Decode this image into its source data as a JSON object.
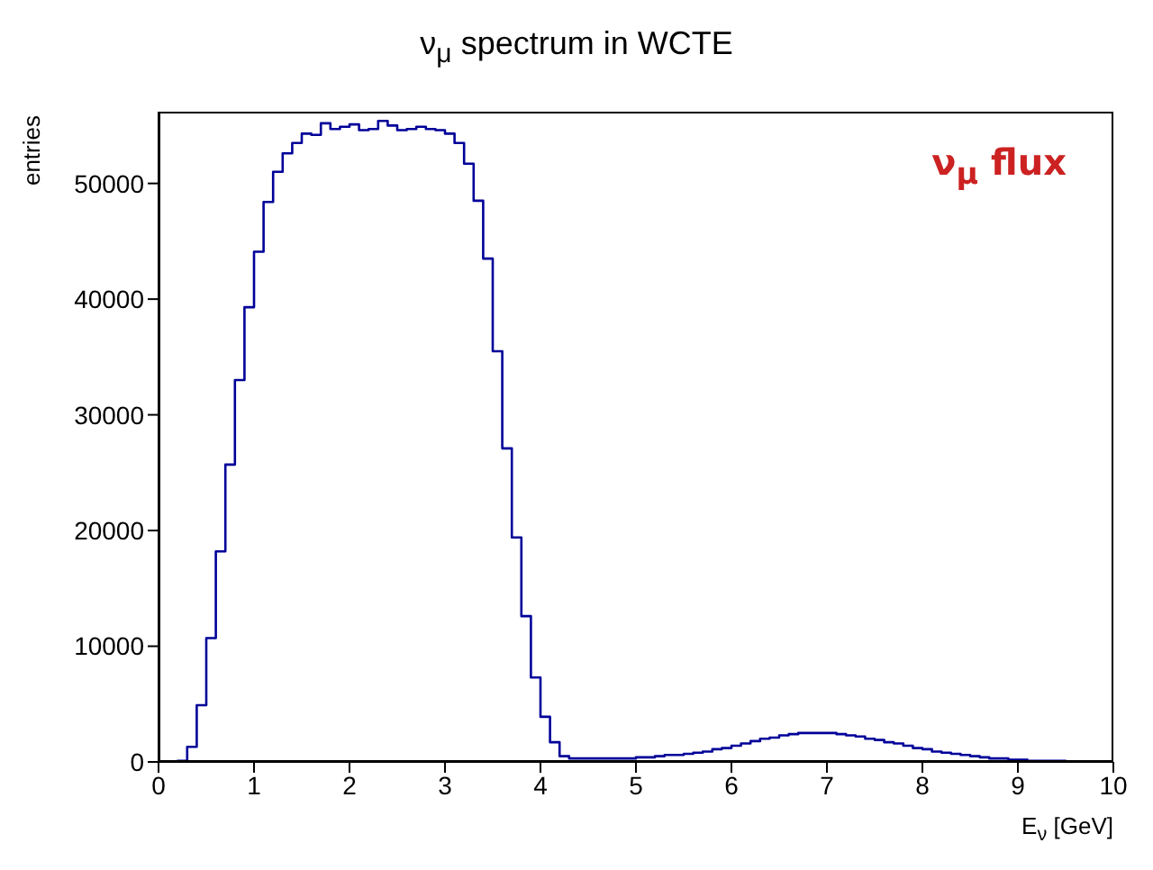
{
  "chart_data": {
    "type": "histogram",
    "title": "ν$_{μ}$ spectrum in WCTE",
    "xlabel": "E$_{ν}$ [GeV]",
    "ylabel": "entries",
    "annotations": [
      "ν$_{μ}$ flux"
    ],
    "bins": [
      0,
      0.1,
      0.2,
      0.3,
      0.4,
      0.5,
      0.6,
      0.7,
      0.8,
      0.9,
      1,
      1.1,
      1.2,
      1.3,
      1.4,
      1.5,
      1.6,
      1.7,
      1.8,
      1.9,
      2,
      2.1,
      2.2,
      2.3,
      2.4,
      2.5,
      2.6,
      2.7,
      2.8,
      2.9,
      3,
      3.1,
      3.2,
      3.3,
      3.4,
      3.5,
      3.6,
      3.7,
      3.8,
      3.9,
      4,
      4.1,
      4.2,
      4.3,
      4.4,
      4.5,
      4.6,
      4.7,
      4.8,
      4.9,
      5,
      5.1,
      5.2,
      5.3,
      5.4,
      5.5,
      5.6,
      5.7,
      5.8,
      5.9,
      6,
      6.1,
      6.2,
      6.3,
      6.4,
      6.5,
      6.6,
      6.7,
      6.8,
      6.9,
      7,
      7.1,
      7.2,
      7.3,
      7.4,
      7.5,
      7.6,
      7.7,
      7.8,
      7.9,
      8,
      8.1,
      8.2,
      8.3,
      8.4,
      8.5,
      8.6,
      8.7,
      8.8,
      8.9,
      9,
      9.1,
      9.2,
      9.3,
      9.4,
      9.5,
      9.6,
      9.7,
      9.8,
      9.9,
      10
    ],
    "values": [
      0,
      0,
      100,
      1300,
      4900,
      10700,
      18200,
      25700,
      33000,
      39300,
      44100,
      48400,
      51000,
      52600,
      53500,
      54300,
      54200,
      55200,
      54700,
      54900,
      55100,
      54600,
      54700,
      55400,
      55000,
      54600,
      54700,
      54900,
      54700,
      54600,
      54300,
      53500,
      51700,
      48500,
      43500,
      35500,
      27100,
      19400,
      12600,
      7300,
      3900,
      1700,
      500,
      300,
      300,
      300,
      300,
      300,
      300,
      300,
      400,
      400,
      500,
      600,
      600,
      700,
      800,
      900,
      1100,
      1200,
      1400,
      1600,
      1800,
      2000,
      2100,
      2300,
      2400,
      2500,
      2500,
      2500,
      2500,
      2400,
      2300,
      2200,
      2000,
      1900,
      1700,
      1600,
      1400,
      1200,
      1100,
      900,
      800,
      700,
      600,
      500,
      400,
      300,
      300,
      200,
      200,
      100,
      100,
      100,
      100,
      0,
      0,
      0,
      0,
      0
    ],
    "color": "#000099",
    "xlim": [
      0,
      10
    ],
    "ylim": [
      0,
      56200
    ],
    "xticks": [
      0,
      1,
      2,
      3,
      4,
      5,
      6,
      7,
      8,
      9,
      10
    ],
    "yticks": [
      0,
      10000,
      20000,
      30000,
      40000,
      50000
    ],
    "grid": false
  }
}
